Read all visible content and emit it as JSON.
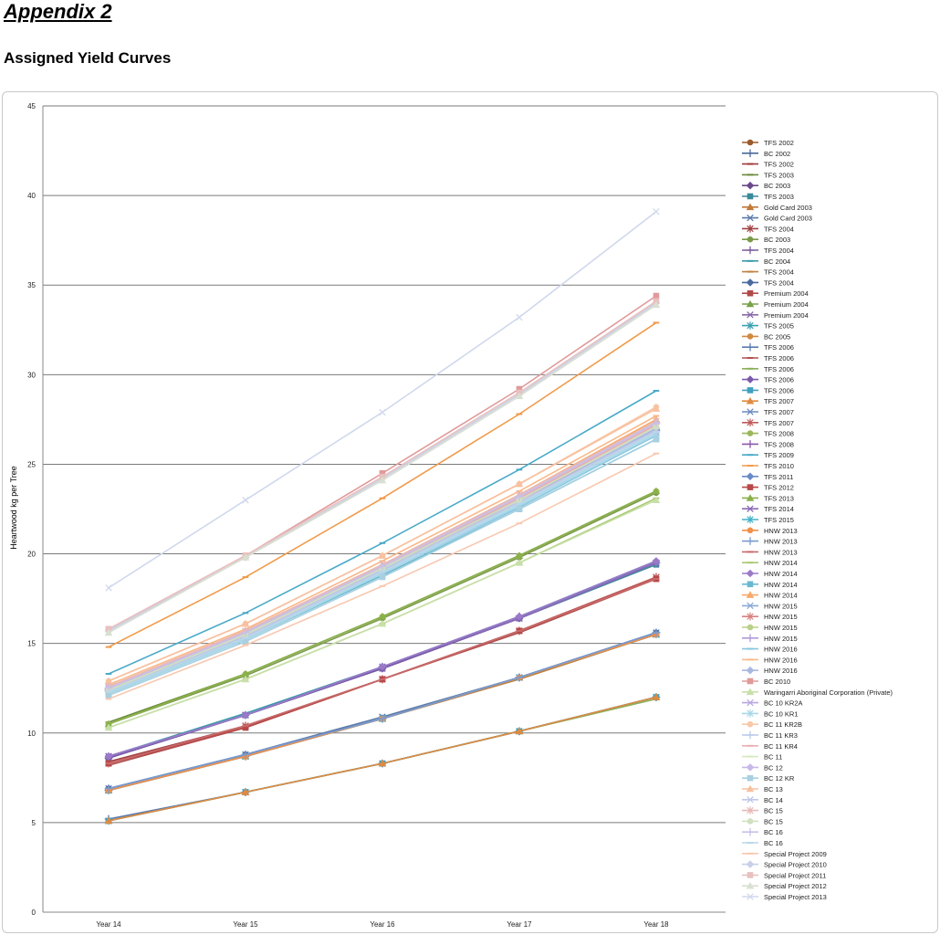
{
  "page": {
    "heading": "Appendix 2",
    "subheading": "Assigned Yield Curves"
  },
  "chart_data": {
    "type": "line",
    "title": "",
    "xlabel": "",
    "ylabel": "Heartwood kg per Tree",
    "ylim": [
      0,
      45
    ],
    "yticks": [
      0,
      5,
      10,
      15,
      20,
      25,
      30,
      35,
      40,
      45
    ],
    "grid": true,
    "legend": "right",
    "categories": [
      "Year 14",
      "Year 15",
      "Year 16",
      "Year 17",
      "Year 18"
    ],
    "series": [
      {
        "name": "TFS 2002",
        "color": "#9c5a2a",
        "marker": "circle",
        "values": [
          6.8,
          8.7,
          10.8,
          13.1,
          15.5
        ]
      },
      {
        "name": "BC 2002",
        "color": "#4a6a9a",
        "marker": "plus",
        "values": [
          6.8,
          8.7,
          10.8,
          13.1,
          15.6
        ]
      },
      {
        "name": "TFS 2002",
        "color": "#a03a3a",
        "marker": "dash",
        "values": [
          8.3,
          10.4,
          13.0,
          15.7,
          18.6
        ]
      },
      {
        "name": "TFS 2003",
        "color": "#6a8a3a",
        "marker": "dash",
        "values": [
          10.6,
          13.3,
          16.5,
          19.9,
          23.5
        ]
      },
      {
        "name": "BC 2003",
        "color": "#6a4a8a",
        "marker": "diamond",
        "values": [
          8.7,
          11.0,
          13.6,
          16.4,
          19.5
        ]
      },
      {
        "name": "TFS 2003",
        "color": "#3a8a9a",
        "marker": "square",
        "values": [
          8.6,
          11.0,
          13.6,
          16.4,
          19.4
        ]
      },
      {
        "name": "Gold Card 2003",
        "color": "#c07a3a",
        "marker": "triangle",
        "values": [
          6.8,
          8.7,
          10.8,
          13.1,
          15.5
        ]
      },
      {
        "name": "Gold Card 2003",
        "color": "#5a7aaa",
        "marker": "x",
        "values": [
          6.9,
          8.8,
          10.9,
          13.1,
          15.6
        ]
      },
      {
        "name": "TFS 2004",
        "color": "#a04040",
        "marker": "star",
        "values": [
          8.4,
          10.4,
          13.0,
          15.7,
          18.7
        ]
      },
      {
        "name": "BC 2003",
        "color": "#7a9a4a",
        "marker": "circle",
        "values": [
          10.5,
          13.2,
          16.4,
          19.8,
          23.4
        ]
      },
      {
        "name": "TFS 2004",
        "color": "#7a5a9a",
        "marker": "plus",
        "values": [
          8.6,
          11.0,
          13.7,
          16.5,
          19.5
        ]
      },
      {
        "name": "BC 2004",
        "color": "#3a9aaa",
        "marker": "dash",
        "values": [
          8.7,
          11.1,
          13.7,
          16.5,
          19.6
        ]
      },
      {
        "name": "TFS 2004",
        "color": "#c08040",
        "marker": "dash",
        "values": [
          6.8,
          8.7,
          10.8,
          13.0,
          15.5
        ]
      },
      {
        "name": "TFS 2004",
        "color": "#4a6aa0",
        "marker": "diamond",
        "values": [
          6.9,
          8.8,
          10.8,
          13.1,
          15.6
        ]
      },
      {
        "name": "Premium 2004",
        "color": "#b04a4a",
        "marker": "square",
        "values": [
          8.3,
          10.3,
          13.0,
          15.7,
          18.6
        ]
      },
      {
        "name": "Premium 2004",
        "color": "#7aa04a",
        "marker": "triangle",
        "values": [
          5.1,
          6.7,
          8.3,
          10.1,
          12.0
        ]
      },
      {
        "name": "Premium 2004",
        "color": "#8a6aaa",
        "marker": "x",
        "values": [
          8.7,
          11.0,
          13.6,
          16.4,
          19.5
        ]
      },
      {
        "name": "TFS 2005",
        "color": "#3aa0b0",
        "marker": "star",
        "values": [
          5.1,
          6.7,
          8.3,
          10.1,
          12.0
        ]
      },
      {
        "name": "BC 2005",
        "color": "#d08a40",
        "marker": "circle",
        "values": [
          5.1,
          6.7,
          8.3,
          10.1,
          12.0
        ]
      },
      {
        "name": "TFS 2006",
        "color": "#5a7ab0",
        "marker": "plus",
        "values": [
          5.2,
          6.7,
          8.3,
          10.1,
          12.0
        ]
      },
      {
        "name": "TFS 2006",
        "color": "#b05050",
        "marker": "dash",
        "values": [
          8.2,
          10.3,
          13.0,
          15.6,
          18.6
        ]
      },
      {
        "name": "TFS 2006",
        "color": "#8ab05a",
        "marker": "dash",
        "values": [
          5.1,
          6.7,
          8.3,
          10.1,
          11.9
        ]
      },
      {
        "name": "TFS 2006",
        "color": "#7a5aaa",
        "marker": "diamond",
        "values": [
          8.6,
          11.0,
          13.6,
          16.4,
          19.5
        ]
      },
      {
        "name": "TFS 2006",
        "color": "#40a0c0",
        "marker": "square",
        "values": [
          5.1,
          6.7,
          8.3,
          10.1,
          12.0
        ]
      },
      {
        "name": "TFS 2007",
        "color": "#e08a40",
        "marker": "triangle",
        "values": [
          5.1,
          6.7,
          8.3,
          10.1,
          12.0
        ]
      },
      {
        "name": "TFS 2007",
        "color": "#6a8ac0",
        "marker": "x",
        "values": [
          6.8,
          8.7,
          10.8,
          13.1,
          15.5
        ]
      },
      {
        "name": "TFS 2007",
        "color": "#c05a5a",
        "marker": "star",
        "values": [
          8.3,
          10.4,
          13.0,
          15.7,
          18.7
        ]
      },
      {
        "name": "TFS 2008",
        "color": "#9ab85a",
        "marker": "circle",
        "values": [
          10.5,
          13.3,
          16.5,
          19.9,
          23.5
        ]
      },
      {
        "name": "TFS 2008",
        "color": "#8a5aaa",
        "marker": "plus",
        "values": [
          12.4,
          15.4,
          19.1,
          23.0,
          26.9
        ]
      },
      {
        "name": "TFS 2009",
        "color": "#4aaac8",
        "marker": "dash",
        "values": [
          13.3,
          16.7,
          20.6,
          24.7,
          29.1
        ]
      },
      {
        "name": "TFS 2010",
        "color": "#f09a4a",
        "marker": "dash",
        "values": [
          14.8,
          18.7,
          23.1,
          27.8,
          32.9
        ]
      },
      {
        "name": "TFS 2011",
        "color": "#6a8ac8",
        "marker": "diamond",
        "values": [
          8.7,
          11.0,
          13.7,
          16.5,
          19.5
        ]
      },
      {
        "name": "TFS 2012",
        "color": "#b84848",
        "marker": "square",
        "values": [
          8.3,
          10.3,
          13.0,
          15.7,
          18.6
        ]
      },
      {
        "name": "TFS 2013",
        "color": "#8ab04a",
        "marker": "triangle",
        "values": [
          10.5,
          13.3,
          16.5,
          19.9,
          23.5
        ]
      },
      {
        "name": "TFS 2014",
        "color": "#8a6ab8",
        "marker": "x",
        "values": [
          8.7,
          11.0,
          13.7,
          16.4,
          19.5
        ]
      },
      {
        "name": "TFS 2015",
        "color": "#40b0c8",
        "marker": "star",
        "values": [
          6.8,
          8.7,
          10.8,
          13.1,
          15.5
        ]
      },
      {
        "name": "HNW 2013",
        "color": "#f0904a",
        "marker": "circle",
        "values": [
          6.8,
          8.7,
          10.8,
          13.1,
          15.5
        ]
      },
      {
        "name": "HNW 2013",
        "color": "#7a9ad0",
        "marker": "plus",
        "values": [
          6.9,
          8.8,
          10.8,
          13.1,
          15.6
        ]
      },
      {
        "name": "HNW 2013",
        "color": "#c86a6a",
        "marker": "dash",
        "values": [
          8.3,
          10.4,
          13.0,
          15.7,
          18.6
        ]
      },
      {
        "name": "HNW 2014",
        "color": "#a8c870",
        "marker": "dash",
        "values": [
          10.3,
          13.0,
          16.1,
          19.5,
          23.1
        ]
      },
      {
        "name": "HNW 2014",
        "color": "#9a7ac8",
        "marker": "diamond",
        "values": [
          8.7,
          11.0,
          13.7,
          16.5,
          19.6
        ]
      },
      {
        "name": "HNW 2014",
        "color": "#6ab8d0",
        "marker": "square",
        "values": [
          12.2,
          15.2,
          18.8,
          22.5,
          26.4
        ]
      },
      {
        "name": "HNW 2014",
        "color": "#f8a868",
        "marker": "triangle",
        "values": [
          12.6,
          15.7,
          19.4,
          23.3,
          27.5
        ]
      },
      {
        "name": "HNW 2015",
        "color": "#8aa8d8",
        "marker": "x",
        "values": [
          12.3,
          15.3,
          19.0,
          22.8,
          26.8
        ]
      },
      {
        "name": "HNW 2015",
        "color": "#d88080",
        "marker": "star",
        "values": [
          12.4,
          15.5,
          19.2,
          23.0,
          27.1
        ]
      },
      {
        "name": "HNW 2015",
        "color": "#b8d088",
        "marker": "circle",
        "values": [
          12.5,
          15.6,
          19.3,
          23.2,
          27.3
        ]
      },
      {
        "name": "HNW 2015",
        "color": "#b09ad8",
        "marker": "plus",
        "values": [
          12.5,
          15.6,
          19.3,
          23.2,
          27.3
        ]
      },
      {
        "name": "HNW 2016",
        "color": "#88c8e0",
        "marker": "dash",
        "values": [
          12.2,
          15.2,
          18.9,
          22.6,
          26.6
        ]
      },
      {
        "name": "HNW 2016",
        "color": "#f8b888",
        "marker": "dash",
        "values": [
          12.7,
          15.8,
          19.6,
          23.5,
          27.7
        ]
      },
      {
        "name": "HNW 2016",
        "color": "#a8b8e0",
        "marker": "diamond",
        "values": [
          12.4,
          15.4,
          19.1,
          22.9,
          27.0
        ]
      },
      {
        "name": "BC 2010",
        "color": "#e09a9a",
        "marker": "square",
        "values": [
          15.8,
          19.9,
          24.5,
          29.2,
          34.4
        ]
      },
      {
        "name": "Waringarri Aboriginal Corporation (Private)",
        "color": "#c8e0a8",
        "marker": "triangle",
        "values": [
          10.3,
          13.0,
          16.1,
          19.5,
          23.0
        ]
      },
      {
        "name": "BC 10 KR2A",
        "color": "#b8a8e0",
        "marker": "x",
        "values": [
          12.5,
          15.5,
          19.2,
          23.1,
          27.2
        ]
      },
      {
        "name": "BC 10 KR1",
        "color": "#a8d8e8",
        "marker": "star",
        "values": [
          12.2,
          15.2,
          18.9,
          22.7,
          26.7
        ]
      },
      {
        "name": "BC 11 KR2B",
        "color": "#f8c8a8",
        "marker": "circle",
        "values": [
          12.9,
          16.1,
          19.9,
          23.9,
          28.2
        ]
      },
      {
        "name": "BC 11 KR3",
        "color": "#b8c8e8",
        "marker": "plus",
        "values": [
          12.3,
          15.3,
          19.0,
          22.8,
          26.8
        ]
      },
      {
        "name": "BC 11 KR4",
        "color": "#e8b0b0",
        "marker": "dash",
        "values": [
          12.5,
          15.6,
          19.3,
          23.1,
          27.2
        ]
      },
      {
        "name": "BC 11",
        "color": "#d8e8c0",
        "marker": "dash",
        "values": [
          12.4,
          15.5,
          19.2,
          23.0,
          27.1
        ]
      },
      {
        "name": "BC 12",
        "color": "#c8b8e8",
        "marker": "diamond",
        "values": [
          12.5,
          15.6,
          19.3,
          23.2,
          27.3
        ]
      },
      {
        "name": "BC 12 KR",
        "color": "#a8d0e0",
        "marker": "square",
        "values": [
          12.1,
          15.1,
          18.7,
          22.5,
          26.4
        ]
      },
      {
        "name": "BC 13",
        "color": "#f8c0a0",
        "marker": "triangle",
        "values": [
          12.9,
          16.1,
          19.9,
          23.9,
          28.1
        ]
      },
      {
        "name": "BC 14",
        "color": "#c0c8e8",
        "marker": "x",
        "values": [
          12.4,
          15.4,
          19.1,
          22.9,
          26.9
        ]
      },
      {
        "name": "BC 15",
        "color": "#e8b8b8",
        "marker": "star",
        "values": [
          12.6,
          15.7,
          19.4,
          23.3,
          27.4
        ]
      },
      {
        "name": "BC 15",
        "color": "#d0e0c0",
        "marker": "circle",
        "values": [
          12.4,
          15.5,
          19.2,
          23.0,
          27.1
        ]
      },
      {
        "name": "BC 16",
        "color": "#c8c0e8",
        "marker": "plus",
        "values": [
          12.5,
          15.6,
          19.3,
          23.2,
          27.3
        ]
      },
      {
        "name": "BC 16",
        "color": "#b8d8e8",
        "marker": "dash",
        "values": [
          12.3,
          15.3,
          19.0,
          22.8,
          26.8
        ]
      },
      {
        "name": "Special Project 2009",
        "color": "#f8c8b0",
        "marker": "dash",
        "values": [
          11.9,
          14.9,
          18.2,
          21.7,
          25.6
        ]
      },
      {
        "name": "Special Project 2010",
        "color": "#c8d0e8",
        "marker": "diamond",
        "values": [
          15.7,
          19.8,
          24.2,
          28.9,
          34.0
        ]
      },
      {
        "name": "Special Project 2011",
        "color": "#e8c0c0",
        "marker": "square",
        "values": [
          15.8,
          19.9,
          24.3,
          29.0,
          34.1
        ]
      },
      {
        "name": "Special Project 2012",
        "color": "#d8e0d0",
        "marker": "triangle",
        "values": [
          15.6,
          19.8,
          24.1,
          28.8,
          33.9
        ]
      },
      {
        "name": "Special Project 2013",
        "color": "#d0d8ec",
        "marker": "x",
        "values": [
          18.1,
          23.0,
          27.9,
          33.2,
          39.1
        ]
      }
    ]
  }
}
